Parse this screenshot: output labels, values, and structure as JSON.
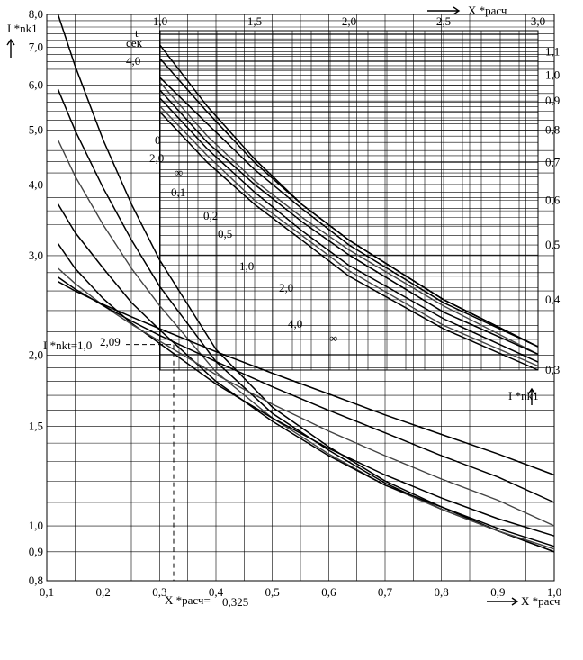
{
  "chart_data": [
    {
      "type": "line",
      "name": "lower-chart",
      "x_axis": {
        "label": "X *расч",
        "range": [
          0.1,
          1.0
        ],
        "ticks": [
          "0,1",
          "0,2",
          "0,3",
          "0,4",
          "0,5",
          "0,6",
          "0,7",
          "0,8",
          "0,9",
          "1,0"
        ]
      },
      "y_axis": {
        "label": "I *nk1",
        "scale": "log",
        "range": [
          0.8,
          8.0
        ],
        "ticks": [
          "0,8",
          "0,9",
          "1,0",
          "1,5",
          "2,0",
          "3,0",
          "4,0",
          "5,0",
          "6,0",
          "7,0",
          "8,0"
        ]
      },
      "series": [
        {
          "name": "0",
          "x": [
            0.12,
            0.15,
            0.2,
            0.25,
            0.3,
            0.4,
            0.5,
            0.6,
            0.7,
            0.8,
            0.9,
            1.0
          ],
          "y": [
            8.0,
            6.5,
            4.8,
            3.7,
            2.95,
            2.05,
            1.62,
            1.38,
            1.2,
            1.08,
            0.98,
            0.9
          ]
        },
        {
          "name": "0,1",
          "x": [
            0.12,
            0.15,
            0.2,
            0.25,
            0.3,
            0.4,
            0.5,
            0.6,
            0.7,
            0.8,
            0.9,
            1.0
          ],
          "y": [
            5.9,
            5.0,
            3.95,
            3.2,
            2.65,
            1.95,
            1.58,
            1.36,
            1.19,
            1.07,
            0.98,
            0.9
          ]
        },
        {
          "name": "0,2",
          "x": [
            0.12,
            0.15,
            0.2,
            0.25,
            0.3,
            0.4,
            0.5,
            0.6,
            0.7,
            0.8,
            0.9,
            1.0
          ],
          "y": [
            4.8,
            4.15,
            3.4,
            2.85,
            2.45,
            1.87,
            1.55,
            1.34,
            1.18,
            1.07,
            0.98,
            0.91
          ]
        },
        {
          "name": "0,5",
          "x": [
            0.12,
            0.15,
            0.2,
            0.25,
            0.3,
            0.4,
            0.5,
            0.6,
            0.7,
            0.8,
            0.9,
            1.0
          ],
          "y": [
            3.7,
            3.3,
            2.85,
            2.48,
            2.22,
            1.8,
            1.53,
            1.33,
            1.18,
            1.08,
            0.99,
            0.92
          ]
        },
        {
          "name": "1,0",
          "x": [
            0.12,
            0.15,
            0.2,
            0.25,
            0.3,
            0.4,
            0.5,
            0.6,
            0.7,
            0.8,
            0.9,
            1.0
          ],
          "y": [
            3.15,
            2.85,
            2.52,
            2.28,
            2.1,
            1.78,
            1.55,
            1.37,
            1.23,
            1.12,
            1.03,
            0.96
          ]
        },
        {
          "name": "2,0",
          "x": [
            0.12,
            0.15,
            0.2,
            0.25,
            0.3,
            0.4,
            0.5,
            0.6,
            0.7,
            0.8,
            0.9,
            1.0
          ],
          "y": [
            2.85,
            2.68,
            2.45,
            2.27,
            2.12,
            1.85,
            1.64,
            1.47,
            1.33,
            1.21,
            1.11,
            1.0
          ]
        },
        {
          "name": "4,0",
          "x": [
            0.12,
            0.15,
            0.2,
            0.25,
            0.3,
            0.4,
            0.5,
            0.6,
            0.7,
            0.8,
            0.9,
            1.0
          ],
          "y": [
            2.75,
            2.62,
            2.45,
            2.3,
            2.17,
            1.95,
            1.76,
            1.6,
            1.46,
            1.33,
            1.22,
            1.1
          ]
        },
        {
          "name": "∞",
          "x": [
            0.12,
            0.15,
            0.2,
            0.25,
            0.3,
            0.4,
            0.5,
            0.6,
            0.7,
            0.8,
            0.9,
            1.0
          ],
          "y": [
            2.7,
            2.6,
            2.46,
            2.34,
            2.23,
            2.03,
            1.86,
            1.71,
            1.57,
            1.45,
            1.34,
            1.23
          ]
        }
      ],
      "annotations": {
        "marker_label": "I *nkt=1,0 2,09",
        "x_marker_label": "X *расч= 0,325",
        "marker_x": 0.325,
        "marker_y": 2.09
      }
    },
    {
      "type": "line",
      "name": "upper-chart",
      "x_axis": {
        "label": "X *расч",
        "range": [
          1.0,
          3.0
        ],
        "ticks": [
          "1,0",
          "1,5",
          "2,0",
          "2,5",
          "3,0"
        ]
      },
      "y_axis": {
        "label": "I *nk1",
        "scale": "log",
        "range": [
          0.3,
          1.2
        ],
        "ticks": [
          "0,3",
          "0,4",
          "0,5",
          "0,6",
          "0,7",
          "0,8",
          "0,9",
          "1,0",
          "1,1"
        ]
      },
      "t_label": "t сек",
      "series": [
        {
          "name": "4,0",
          "x": [
            1.0,
            1.25,
            1.5,
            1.75,
            2.0,
            2.5,
            3.0
          ],
          "y": [
            1.13,
            0.88,
            0.71,
            0.59,
            0.51,
            0.4,
            0.33
          ]
        },
        {
          "name": "2,0",
          "x": [
            1.0,
            1.25,
            1.5,
            1.75,
            2.0,
            2.5,
            3.0
          ],
          "y": [
            1.07,
            0.86,
            0.7,
            0.59,
            0.51,
            0.4,
            0.33
          ]
        },
        {
          "name": "1,0",
          "x": [
            1.0,
            1.25,
            1.5,
            1.75,
            2.0,
            2.5,
            3.0
          ],
          "y": [
            0.97,
            0.78,
            0.65,
            0.56,
            0.49,
            0.39,
            0.32
          ]
        },
        {
          "name": "0,5",
          "x": [
            1.0,
            1.25,
            1.5,
            1.75,
            2.0,
            2.5,
            3.0
          ],
          "y": [
            0.94,
            0.76,
            0.64,
            0.55,
            0.48,
            0.38,
            0.32
          ]
        },
        {
          "name": "0,2",
          "x": [
            1.0,
            1.25,
            1.5,
            1.75,
            2.0,
            2.5,
            3.0
          ],
          "y": [
            0.91,
            0.74,
            0.62,
            0.53,
            0.46,
            0.37,
            0.31
          ]
        },
        {
          "name": "0,1",
          "x": [
            1.0,
            1.25,
            1.5,
            1.75,
            2.0,
            2.5,
            3.0
          ],
          "y": [
            0.88,
            0.72,
            0.6,
            0.52,
            0.45,
            0.36,
            0.305
          ]
        },
        {
          "name": "0",
          "x": [
            1.0,
            1.25,
            1.5,
            1.75,
            2.0,
            2.5,
            3.0
          ],
          "y": [
            0.86,
            0.7,
            0.59,
            0.51,
            0.44,
            0.355,
            0.3
          ]
        },
        {
          "name": "∞",
          "x": [
            1.0,
            1.25,
            1.5,
            1.75,
            2.0,
            2.5,
            3.0
          ],
          "y": [
            0.99,
            0.82,
            0.68,
            0.58,
            0.5,
            0.395,
            0.33
          ]
        }
      ]
    }
  ],
  "labels": {
    "lower_y_axis": "I *nk1",
    "lower_x_axis": "X *расч",
    "upper_x_axis": "X *расч",
    "upper_y_axis": "I *nk1",
    "t_top": "t",
    "t_bottom": "сек",
    "inline_curve_labels_lower": [
      "0",
      "0,1",
      "0,2",
      "0,5",
      "1,0",
      "2,0",
      "4,0",
      "∞"
    ],
    "inline_curve_labels_upper": [
      "4,0",
      "2,0",
      "∞"
    ],
    "marker_label_left": "I *nkt=1,0",
    "marker_label_value": "2,09",
    "x_marker_label_left": "X *расч=",
    "x_marker_label_value": "0,325"
  }
}
